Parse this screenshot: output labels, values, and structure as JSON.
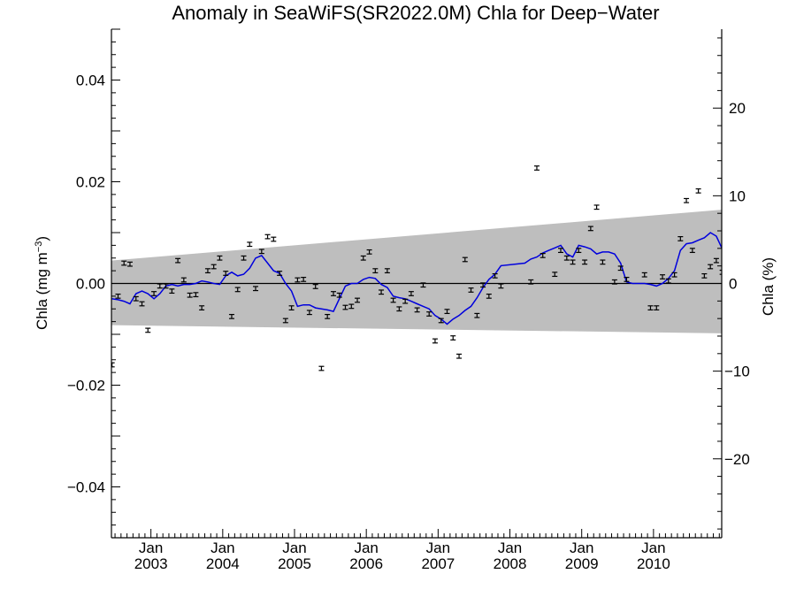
{
  "chart_data": {
    "type": "scatter",
    "title": "Anomaly in SeaWiFS(SR2022.0M) Chla for Deep−Water",
    "ylabel_left": {
      "base": "Chla (mg m",
      "sup": "−3",
      "close": ")"
    },
    "ylabel_right": "Chla (%)",
    "xlim": [
      2002.45,
      2010.95
    ],
    "ylim_left": [
      -0.05,
      0.05
    ],
    "ylim_right": [
      -29,
      29
    ],
    "left_ticks": [
      {
        "value": 0.04,
        "label": "0.04"
      },
      {
        "value": 0.02,
        "label": "0.02"
      },
      {
        "value": 0.0,
        "label": "0.00"
      },
      {
        "value": -0.02,
        "label": "−0.02"
      },
      {
        "value": -0.04,
        "label": "−0.04"
      }
    ],
    "right_ticks": [
      {
        "value": 20,
        "label": "20"
      },
      {
        "value": 10,
        "label": "10"
      },
      {
        "value": 0,
        "label": "0"
      },
      {
        "value": -10,
        "label": "−10"
      },
      {
        "value": -20,
        "label": "−20"
      }
    ],
    "x_ticks": [
      {
        "value": 2003.0,
        "month": "Jan",
        "year": "2003"
      },
      {
        "value": 2004.0,
        "month": "Jan",
        "year": "2004"
      },
      {
        "value": 2005.0,
        "month": "Jan",
        "year": "2005"
      },
      {
        "value": 2006.0,
        "month": "Jan",
        "year": "2006"
      },
      {
        "value": 2007.0,
        "month": "Jan",
        "year": "2007"
      },
      {
        "value": 2008.0,
        "month": "Jan",
        "year": "2008"
      },
      {
        "value": 2009.0,
        "month": "Jan",
        "year": "2009"
      },
      {
        "value": 2010.0,
        "month": "Jan",
        "year": "2010"
      }
    ],
    "uncertainty_band": {
      "x": [
        2002.45,
        2010.95
      ],
      "upper": [
        0.0045,
        0.0145
      ],
      "lower": [
        -0.0082,
        -0.0098
      ],
      "color": "#bebebe"
    },
    "zero_line": 0.0,
    "monthly_points": {
      "color": "#000000",
      "error": 0.0004,
      "points": [
        [
          2002.458,
          -0.016
        ],
        [
          2002.542,
          -0.0025
        ],
        [
          2002.625,
          0.004
        ],
        [
          2002.708,
          0.0038
        ],
        [
          2002.792,
          -0.003
        ],
        [
          2002.875,
          -0.004
        ],
        [
          2002.958,
          -0.0092
        ],
        [
          2003.042,
          -0.002
        ],
        [
          2003.125,
          -0.0005
        ],
        [
          2003.208,
          -0.0005
        ],
        [
          2003.292,
          -0.0015
        ],
        [
          2003.375,
          0.0045
        ],
        [
          2003.458,
          0.0007
        ],
        [
          2003.542,
          -0.0023
        ],
        [
          2003.625,
          -0.0022
        ],
        [
          2003.708,
          -0.0048
        ],
        [
          2003.792,
          0.0025
        ],
        [
          2003.875,
          0.0033
        ],
        [
          2003.958,
          0.005
        ],
        [
          2004.042,
          0.002
        ],
        [
          2004.125,
          -0.0065
        ],
        [
          2004.208,
          -0.0012
        ],
        [
          2004.292,
          0.005
        ],
        [
          2004.375,
          0.0077
        ],
        [
          2004.458,
          -0.001
        ],
        [
          2004.542,
          0.0063
        ],
        [
          2004.625,
          0.0092
        ],
        [
          2004.708,
          0.0087
        ],
        [
          2004.792,
          0.002
        ],
        [
          2004.875,
          -0.0073
        ],
        [
          2004.958,
          -0.0048
        ],
        [
          2005.042,
          0.0007
        ],
        [
          2005.125,
          0.0008
        ],
        [
          2005.208,
          -0.0057
        ],
        [
          2005.292,
          -0.0006
        ],
        [
          2005.375,
          -0.0167
        ],
        [
          2005.458,
          -0.0065
        ],
        [
          2005.542,
          -0.002
        ],
        [
          2005.625,
          -0.0023
        ],
        [
          2005.708,
          -0.0047
        ],
        [
          2005.792,
          -0.0045
        ],
        [
          2005.875,
          -0.0033
        ],
        [
          2005.958,
          0.005
        ],
        [
          2006.042,
          0.0062
        ],
        [
          2006.125,
          0.0025
        ],
        [
          2006.208,
          -0.0017
        ],
        [
          2006.292,
          0.0025
        ],
        [
          2006.375,
          -0.0033
        ],
        [
          2006.458,
          -0.005
        ],
        [
          2006.542,
          -0.0035
        ],
        [
          2006.625,
          -0.002
        ],
        [
          2006.708,
          -0.0052
        ],
        [
          2006.792,
          -0.0003
        ],
        [
          2006.875,
          -0.006
        ],
        [
          2006.958,
          -0.0113
        ],
        [
          2007.042,
          -0.0073
        ],
        [
          2007.125,
          -0.0055
        ],
        [
          2007.208,
          -0.0107
        ],
        [
          2007.292,
          -0.0143
        ],
        [
          2007.375,
          0.0047
        ],
        [
          2007.458,
          -0.0013
        ],
        [
          2007.542,
          -0.0063
        ],
        [
          2007.625,
          -0.0003
        ],
        [
          2007.708,
          -0.0025
        ],
        [
          2007.792,
          0.0015
        ],
        [
          2007.875,
          -0.0005
        ],
        [
          2008.292,
          0.0003
        ],
        [
          2008.375,
          0.0227
        ],
        [
          2008.458,
          0.0055
        ],
        [
          2008.625,
          0.0018
        ],
        [
          2008.708,
          0.0065
        ],
        [
          2008.792,
          0.005
        ],
        [
          2008.875,
          0.0042
        ],
        [
          2008.958,
          0.0065
        ],
        [
          2009.042,
          0.0042
        ],
        [
          2009.125,
          0.0108
        ],
        [
          2009.208,
          0.015
        ],
        [
          2009.292,
          0.0042
        ],
        [
          2009.458,
          0.0003
        ],
        [
          2009.542,
          0.003
        ],
        [
          2009.625,
          0.0008
        ],
        [
          2009.875,
          0.0017
        ],
        [
          2009.958,
          -0.0048
        ],
        [
          2010.042,
          -0.0048
        ],
        [
          2010.125,
          0.0013
        ],
        [
          2010.208,
          0.0005
        ],
        [
          2010.292,
          0.0017
        ],
        [
          2010.375,
          0.0088
        ],
        [
          2010.458,
          0.0163
        ],
        [
          2010.542,
          0.0065
        ],
        [
          2010.625,
          0.0182
        ],
        [
          2010.708,
          0.0015
        ],
        [
          2010.792,
          0.0033
        ],
        [
          2010.875,
          0.0045
        ],
        [
          2010.958,
          0.0022
        ]
      ]
    },
    "running_mean": {
      "color": "#0000dd",
      "points": [
        [
          2002.458,
          -0.003
        ],
        [
          2002.542,
          -0.0032
        ],
        [
          2002.625,
          -0.0035
        ],
        [
          2002.708,
          -0.004
        ],
        [
          2002.792,
          -0.002
        ],
        [
          2002.875,
          -0.0015
        ],
        [
          2002.958,
          -0.002
        ],
        [
          2003.042,
          -0.003
        ],
        [
          2003.125,
          -0.002
        ],
        [
          2003.208,
          -0.0005
        ],
        [
          2003.292,
          -0.0002
        ],
        [
          2003.375,
          -0.0005
        ],
        [
          2003.458,
          -0.0002
        ],
        [
          2003.542,
          -0.0002
        ],
        [
          2003.625,
          0.0
        ],
        [
          2003.708,
          0.0005
        ],
        [
          2003.792,
          0.0003
        ],
        [
          2003.875,
          0.0
        ],
        [
          2003.958,
          -0.0002
        ],
        [
          2004.042,
          0.0015
        ],
        [
          2004.125,
          0.0022
        ],
        [
          2004.208,
          0.0015
        ],
        [
          2004.292,
          0.0018
        ],
        [
          2004.375,
          0.003
        ],
        [
          2004.458,
          0.005
        ],
        [
          2004.542,
          0.0055
        ],
        [
          2004.625,
          0.004
        ],
        [
          2004.708,
          0.0025
        ],
        [
          2004.792,
          0.002
        ],
        [
          2004.875,
          0.0
        ],
        [
          2004.958,
          -0.0015
        ],
        [
          2005.042,
          -0.0045
        ],
        [
          2005.125,
          -0.0042
        ],
        [
          2005.208,
          -0.0042
        ],
        [
          2005.292,
          -0.0048
        ],
        [
          2005.375,
          -0.005
        ],
        [
          2005.458,
          -0.0052
        ],
        [
          2005.542,
          -0.0055
        ],
        [
          2005.625,
          -0.003
        ],
        [
          2005.708,
          -0.0005
        ],
        [
          2005.792,
          0.0
        ],
        [
          2005.875,
          0.0
        ],
        [
          2005.958,
          0.0008
        ],
        [
          2006.042,
          0.0012
        ],
        [
          2006.125,
          0.001
        ],
        [
          2006.208,
          -0.0002
        ],
        [
          2006.292,
          -0.0008
        ],
        [
          2006.375,
          -0.0025
        ],
        [
          2006.458,
          -0.0028
        ],
        [
          2006.542,
          -0.003
        ],
        [
          2006.625,
          -0.0035
        ],
        [
          2006.708,
          -0.004
        ],
        [
          2006.792,
          -0.0045
        ],
        [
          2006.875,
          -0.005
        ],
        [
          2006.958,
          -0.0063
        ],
        [
          2007.042,
          -0.007
        ],
        [
          2007.125,
          -0.008
        ],
        [
          2007.208,
          -0.007
        ],
        [
          2007.292,
          -0.0063
        ],
        [
          2007.375,
          -0.0053
        ],
        [
          2007.458,
          -0.0045
        ],
        [
          2007.542,
          -0.0028
        ],
        [
          2007.625,
          -0.0008
        ],
        [
          2007.708,
          0.0008
        ],
        [
          2007.792,
          0.0018
        ],
        [
          2007.875,
          0.0035
        ],
        [
          2008.208,
          0.004
        ],
        [
          2008.292,
          0.0048
        ],
        [
          2008.375,
          0.0052
        ],
        [
          2008.458,
          0.006
        ],
        [
          2008.542,
          0.0065
        ],
        [
          2008.625,
          0.007
        ],
        [
          2008.708,
          0.0075
        ],
        [
          2008.792,
          0.0058
        ],
        [
          2008.875,
          0.0052
        ],
        [
          2008.958,
          0.0075
        ],
        [
          2009.042,
          0.0072
        ],
        [
          2009.125,
          0.0068
        ],
        [
          2009.208,
          0.0058
        ],
        [
          2009.292,
          0.0062
        ],
        [
          2009.375,
          0.0062
        ],
        [
          2009.458,
          0.0058
        ],
        [
          2009.542,
          0.004
        ],
        [
          2009.625,
          0.0003
        ],
        [
          2009.708,
          0.0
        ],
        [
          2009.792,
          0.0
        ],
        [
          2009.875,
          0.0
        ],
        [
          2009.958,
          -0.0002
        ],
        [
          2010.042,
          -0.0005
        ],
        [
          2010.125,
          0.0
        ],
        [
          2010.208,
          0.001
        ],
        [
          2010.292,
          0.0025
        ],
        [
          2010.375,
          0.0065
        ],
        [
          2010.458,
          0.0078
        ],
        [
          2010.542,
          0.008
        ],
        [
          2010.625,
          0.0085
        ],
        [
          2010.708,
          0.009
        ],
        [
          2010.792,
          0.01
        ],
        [
          2010.875,
          0.0093
        ],
        [
          2010.958,
          0.0068
        ]
      ]
    }
  }
}
